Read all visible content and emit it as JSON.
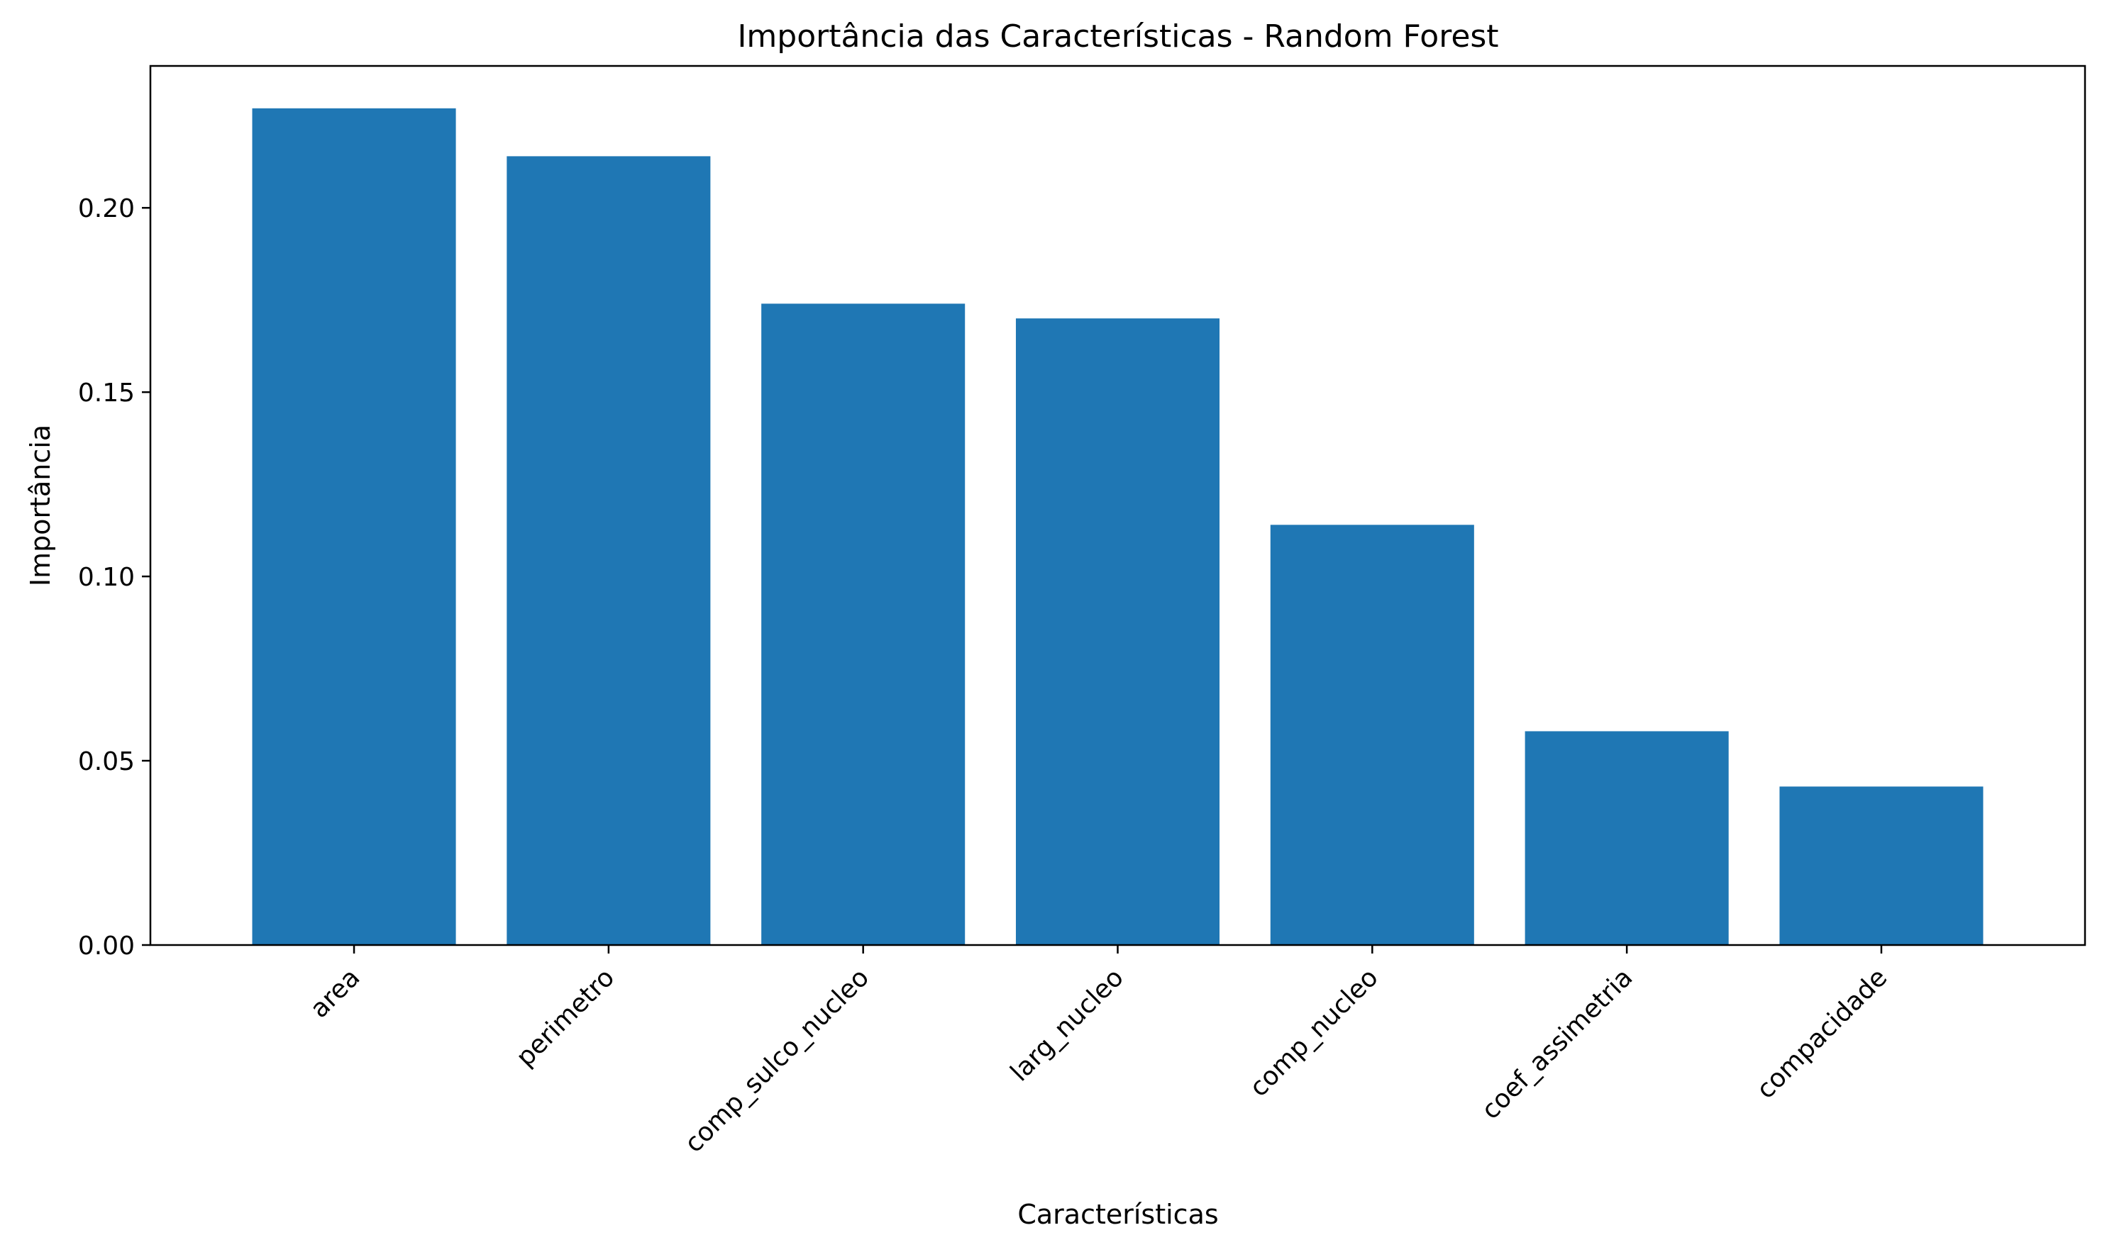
{
  "chart_data": {
    "type": "bar",
    "title": "Importância das Características - Random Forest",
    "xlabel": "Características",
    "ylabel": "Importância",
    "categories": [
      "area",
      "perimetro",
      "comp_sulco_nucleo",
      "larg_nucleo",
      "comp_nucleo",
      "coef_assimetria",
      "compacidade"
    ],
    "values": [
      0.227,
      0.214,
      0.174,
      0.17,
      0.114,
      0.058,
      0.043
    ],
    "ylim": [
      0,
      0.2385
    ],
    "yticks": [
      "0.00",
      "0.05",
      "0.10",
      "0.15",
      "0.20"
    ],
    "bar_color": "#1f77b4",
    "grid": false,
    "legend": "none"
  }
}
